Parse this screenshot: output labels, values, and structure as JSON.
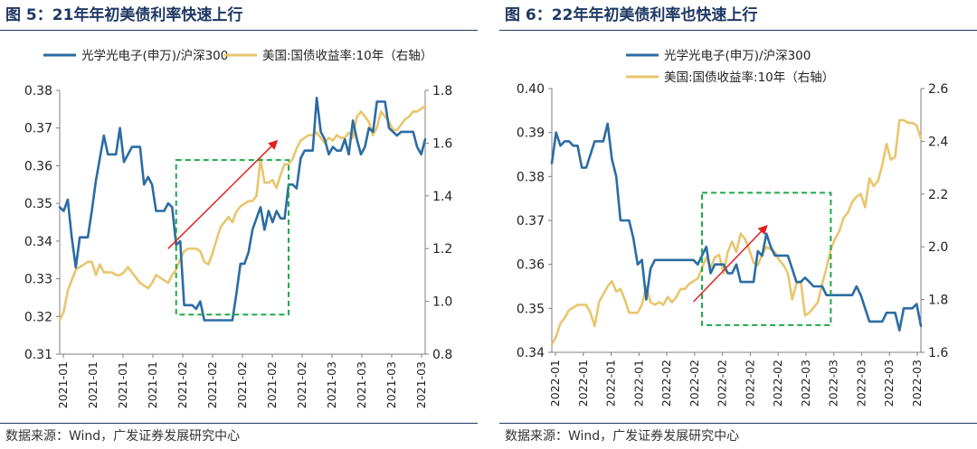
{
  "figures": [
    {
      "title": "图 5：21年年初美债利率快速上行",
      "source": "数据来源：Wind，广发证券发展研究中心"
    },
    {
      "title": "图 6：22年年初美债利率也快速上行",
      "source": "数据来源：Wind，广发证券发展研究中心"
    }
  ],
  "chart_data": [
    {
      "type": "line",
      "legend_position": "top",
      "legend_layout": "row",
      "grid": false,
      "x_tick_labels": [
        "2021-01",
        "2021-01",
        "2021-01",
        "2021-01",
        "2021-02",
        "2021-02",
        "2021-02",
        "2021-02",
        "2021-02",
        "2021-03",
        "2021-03",
        "2021-03",
        "2021-03"
      ],
      "y_ticks_left": [
        "0.31",
        "0.32",
        "0.33",
        "0.34",
        "0.35",
        "0.36",
        "0.37",
        "0.38"
      ],
      "y_ticks_right": [
        "0.8",
        "1.0",
        "1.2",
        "1.4",
        "1.6",
        "1.8"
      ],
      "ylim_left": [
        0.31,
        0.38
      ],
      "ylim_right": [
        0.8,
        1.8
      ],
      "series": [
        {
          "name": "光学光电子(申万)/沪深300",
          "axis": "left",
          "color": "#2b6ca3",
          "values": [
            0.349,
            0.348,
            0.351,
            0.341,
            0.333,
            0.341,
            0.341,
            0.341,
            0.348,
            0.356,
            0.362,
            0.368,
            0.363,
            0.363,
            0.363,
            0.37,
            0.361,
            0.363,
            0.365,
            0.365,
            0.365,
            0.355,
            0.357,
            0.355,
            0.348,
            0.348,
            0.348,
            0.35,
            0.349,
            0.339,
            0.34,
            0.323,
            0.323,
            0.323,
            0.322,
            0.324,
            0.319,
            0.319,
            0.319,
            0.319,
            0.319,
            0.319,
            0.319,
            0.319,
            0.326,
            0.334,
            0.334,
            0.337,
            0.343,
            0.346,
            0.349,
            0.343,
            0.348,
            0.345,
            0.348,
            0.346,
            0.346,
            0.355,
            0.355,
            0.354,
            0.362,
            0.364,
            0.364,
            0.364,
            0.378,
            0.369,
            0.367,
            0.363,
            0.365,
            0.364,
            0.364,
            0.367,
            0.363,
            0.372,
            0.367,
            0.363,
            0.365,
            0.37,
            0.369,
            0.377,
            0.377,
            0.377,
            0.37,
            0.369,
            0.368,
            0.369,
            0.369,
            0.369,
            0.369,
            0.365,
            0.363,
            0.367
          ]
        },
        {
          "name": "美国:国债收益率:10年（右轴）",
          "axis": "right",
          "color": "#e8c66e",
          "values": [
            0.93,
            0.96,
            1.04,
            1.08,
            1.12,
            1.13,
            1.14,
            1.15,
            1.15,
            1.1,
            1.14,
            1.11,
            1.11,
            1.11,
            1.1,
            1.1,
            1.11,
            1.13,
            1.11,
            1.09,
            1.07,
            1.06,
            1.05,
            1.07,
            1.1,
            1.09,
            1.08,
            1.07,
            1.1,
            1.12,
            1.16,
            1.19,
            1.2,
            1.2,
            1.2,
            1.19,
            1.15,
            1.14,
            1.18,
            1.23,
            1.28,
            1.3,
            1.32,
            1.3,
            1.34,
            1.36,
            1.37,
            1.38,
            1.38,
            1.4,
            1.54,
            1.45,
            1.45,
            1.46,
            1.43,
            1.48,
            1.52,
            1.52,
            1.54,
            1.58,
            1.61,
            1.62,
            1.63,
            1.63,
            1.64,
            1.62,
            1.6,
            1.62,
            1.61,
            1.63,
            1.62,
            1.62,
            1.64,
            1.62,
            1.7,
            1.72,
            1.7,
            1.68,
            1.63,
            1.66,
            1.72,
            1.7,
            1.68,
            1.65,
            1.65,
            1.67,
            1.69,
            1.7,
            1.72,
            1.72,
            1.73,
            1.74
          ]
        }
      ],
      "annotations": {
        "box_index_range": [
          29,
          57
        ],
        "box_value_range": [
          0.3205,
          0.3615
        ],
        "arrow": {
          "from": [
            27,
            0.338
          ],
          "to": [
            54,
            0.3665
          ]
        }
      }
    },
    {
      "type": "line",
      "legend_position": "top",
      "legend_layout": "column",
      "grid": false,
      "x_tick_labels": [
        "2022-01",
        "2022-01",
        "2022-01",
        "2022-01",
        "2022-02",
        "2022-02",
        "2022-02",
        "2022-02",
        "2022-02",
        "2022-03",
        "2022-03",
        "2022-03",
        "2022-03",
        "2022-03"
      ],
      "y_ticks_left": [
        "0.34",
        "0.35",
        "0.36",
        "0.37",
        "0.38",
        "0.39",
        "0.40"
      ],
      "y_ticks_right": [
        "1.6",
        "1.8",
        "2.0",
        "2.2",
        "2.4",
        "2.6"
      ],
      "ylim_left": [
        0.34,
        0.4
      ],
      "ylim_right": [
        1.6,
        2.6
      ],
      "series": [
        {
          "name": "光学光电子(申万)/沪深300",
          "axis": "left",
          "color": "#2b6ca3",
          "values": [
            0.383,
            0.39,
            0.387,
            0.388,
            0.388,
            0.387,
            0.387,
            0.382,
            0.382,
            0.385,
            0.388,
            0.388,
            0.388,
            0.392,
            0.384,
            0.38,
            0.37,
            0.37,
            0.37,
            0.366,
            0.36,
            0.361,
            0.352,
            0.359,
            0.361,
            0.361,
            0.361,
            0.361,
            0.361,
            0.361,
            0.361,
            0.361,
            0.361,
            0.361,
            0.36,
            0.362,
            0.364,
            0.358,
            0.36,
            0.36,
            0.36,
            0.358,
            0.358,
            0.36,
            0.356,
            0.356,
            0.356,
            0.356,
            0.363,
            0.362,
            0.367,
            0.364,
            0.362,
            0.362,
            0.362,
            0.362,
            0.359,
            0.356,
            0.356,
            0.357,
            0.356,
            0.355,
            0.355,
            0.355,
            0.353,
            0.353,
            0.353,
            0.353,
            0.353,
            0.353,
            0.353,
            0.355,
            0.353,
            0.35,
            0.347,
            0.347,
            0.347,
            0.347,
            0.349,
            0.349,
            0.349,
            0.345,
            0.35,
            0.35,
            0.35,
            0.351,
            0.346
          ]
        },
        {
          "name": "美国:国债收益率:10年（右轴）",
          "axis": "right",
          "color": "#e8c66e",
          "values": [
            1.63,
            1.66,
            1.71,
            1.73,
            1.76,
            1.77,
            1.78,
            1.78,
            1.78,
            1.75,
            1.7,
            1.79,
            1.82,
            1.85,
            1.87,
            1.83,
            1.84,
            1.8,
            1.75,
            1.75,
            1.75,
            1.78,
            1.85,
            1.79,
            1.78,
            1.79,
            1.78,
            1.81,
            1.79,
            1.81,
            1.84,
            1.84,
            1.86,
            1.87,
            1.88,
            1.92,
            1.96,
            1.92,
            1.96,
            1.97,
            1.9,
            1.98,
            2.02,
            1.98,
            2.05,
            2.03,
            1.99,
            1.94,
            1.93,
            1.97,
            2.0,
            1.99,
            1.98,
            1.95,
            1.93,
            1.9,
            1.8,
            1.86,
            1.87,
            1.74,
            1.75,
            1.77,
            1.79,
            1.86,
            1.92,
            1.99,
            2.03,
            2.06,
            2.11,
            2.13,
            2.17,
            2.19,
            2.2,
            2.15,
            2.26,
            2.23,
            2.25,
            2.31,
            2.39,
            2.33,
            2.34,
            2.48,
            2.48,
            2.47,
            2.47,
            2.46,
            2.41
          ]
        }
      ],
      "annotations": {
        "box_index_range": [
          35,
          65
        ],
        "box_value_range": [
          0.3462,
          0.3763
        ],
        "arrow": {
          "from": [
            33,
            0.3515
          ],
          "to": [
            50,
            0.3687
          ]
        }
      }
    }
  ]
}
